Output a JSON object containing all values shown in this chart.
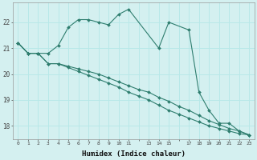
{
  "xlabel": "Humidex (Indice chaleur)",
  "bg_color": "#d4f0f0",
  "grid_color": "#b8e8e8",
  "line_color": "#2e7d6e",
  "xlim": [
    -0.5,
    23.5
  ],
  "ylim": [
    17.5,
    22.75
  ],
  "yticks": [
    18,
    19,
    20,
    21,
    22
  ],
  "xticks": [
    0,
    1,
    2,
    3,
    4,
    5,
    6,
    7,
    8,
    9,
    10,
    11,
    12,
    13,
    14,
    15,
    16,
    17,
    18,
    19,
    20,
    21,
    22,
    23
  ],
  "xtick_labels": [
    "0",
    "1",
    "2",
    "3",
    "4",
    "5",
    "6",
    "7",
    "8",
    "9",
    "10",
    "11",
    "",
    "13",
    "14",
    "15",
    "",
    "17",
    "18",
    "19",
    "20",
    "21",
    "22",
    "23"
  ],
  "series1_x": [
    0,
    1,
    2,
    3,
    4,
    5,
    6,
    7,
    8,
    9,
    10,
    11,
    14,
    15,
    17,
    18,
    19,
    20,
    21,
    22,
    23
  ],
  "series1_y": [
    21.2,
    20.8,
    20.8,
    20.8,
    21.1,
    21.8,
    22.1,
    22.1,
    22.0,
    21.9,
    22.3,
    22.5,
    21.0,
    22.0,
    21.7,
    19.3,
    18.6,
    18.1,
    18.1,
    17.8,
    17.65
  ],
  "series2_x": [
    0,
    1,
    2,
    3,
    4,
    5,
    6,
    7,
    8,
    9,
    10,
    11,
    12,
    13,
    14,
    15,
    16,
    17,
    18,
    19,
    20,
    21,
    22,
    23
  ],
  "series2_y": [
    21.2,
    20.8,
    20.8,
    20.4,
    20.4,
    20.3,
    20.2,
    20.1,
    20.0,
    19.85,
    19.7,
    19.55,
    19.4,
    19.3,
    19.1,
    18.95,
    18.75,
    18.6,
    18.4,
    18.2,
    18.05,
    17.9,
    17.8,
    17.65
  ],
  "series3_x": [
    0,
    1,
    2,
    3,
    4,
    5,
    6,
    7,
    8,
    9,
    10,
    11,
    12,
    13,
    14,
    15,
    16,
    17,
    18,
    19,
    20,
    21,
    22,
    23
  ],
  "series3_y": [
    21.2,
    20.8,
    20.8,
    20.4,
    20.4,
    20.25,
    20.1,
    19.95,
    19.8,
    19.65,
    19.5,
    19.3,
    19.15,
    19.0,
    18.8,
    18.6,
    18.45,
    18.3,
    18.15,
    18.0,
    17.9,
    17.8,
    17.7,
    17.65
  ]
}
